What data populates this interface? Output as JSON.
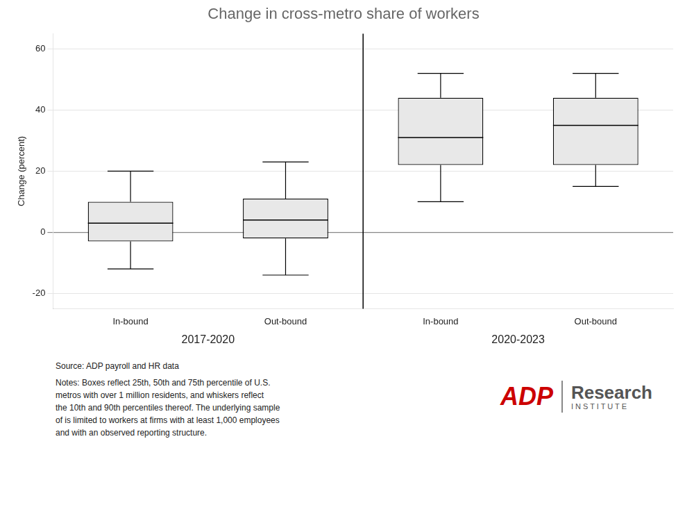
{
  "chart_data": {
    "type": "box",
    "title": "Change in cross-metro share of workers",
    "y_label": "Change (percent)",
    "categories": [
      "In-bound",
      "Out-bound",
      "In-bound",
      "Out-bound"
    ],
    "periods": [
      "2017-2020",
      "2017-2020",
      "2020-2023",
      "2020-2023"
    ],
    "whisker_low": [
      -12,
      -14,
      10,
      15
    ],
    "q1": [
      -3,
      -2,
      22,
      22
    ],
    "median": [
      3,
      4,
      31,
      35
    ],
    "q3": [
      10,
      11,
      44,
      44
    ],
    "whisker_high": [
      20,
      23,
      52,
      52
    ],
    "color": "#e8e8e8",
    "ylim": [
      -25,
      65
    ],
    "yticks": [
      -20,
      0,
      20,
      40,
      60
    ],
    "grid": true,
    "source": "Source: ADP payroll and HR data",
    "notes": "Notes: Boxes reflect 25th, 50th and 75th percentile of U.S.\nmetros with over 1 million residents, and whiskers reflect\nthe 10th and 90th percentiles thereof. The underlying sample\nof is limited to workers at firms with at least 1,000 employees\nand with an observed reporting structure.",
    "logo": {
      "name": "ADP",
      "color": "#cc0000",
      "line1": "Research",
      "line2": "I N S T I T U T E"
    }
  }
}
